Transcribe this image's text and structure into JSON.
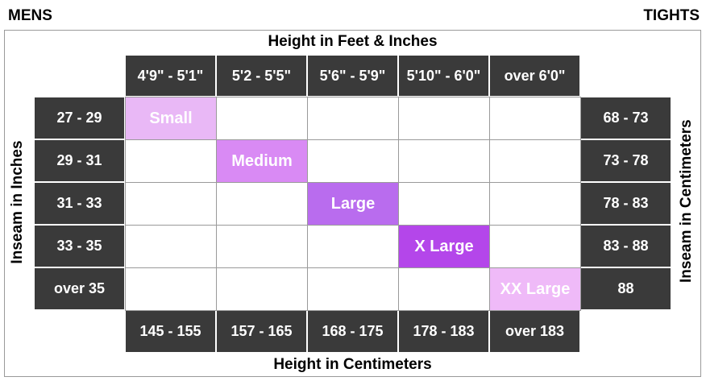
{
  "header": {
    "left": "MENS",
    "right": "TIGHTS"
  },
  "axis_labels": {
    "top": "Height in Feet & Inches",
    "bottom": "Height in Centimeters",
    "left": "Inseam in Inches",
    "right": "Inseam in Centimeters"
  },
  "height_feet": [
    "4'9\" - 5'1\"",
    "5'2 - 5'5\"",
    "5'6\" - 5'9\"",
    "5'10\" - 6'0\"",
    "over 6'0\""
  ],
  "height_cm": [
    "145 - 155",
    "157 - 165",
    "168 - 175",
    "178 - 183",
    "over 183"
  ],
  "inseam_inches": [
    "27 - 29",
    "29 - 31",
    "31 - 33",
    "33 - 35",
    "over 35"
  ],
  "inseam_cm": [
    "68 - 73",
    "73 - 78",
    "78 - 83",
    "83 - 88",
    "88"
  ],
  "sizes": [
    {
      "label": "Small",
      "color": "#e9b8f6"
    },
    {
      "label": "Medium",
      "color": "#d98af4"
    },
    {
      "label": "Large",
      "color": "#b96cee"
    },
    {
      "label": "X Large",
      "color": "#b446ea"
    },
    {
      "label": "XX Large",
      "color": "#efbaf8"
    }
  ]
}
